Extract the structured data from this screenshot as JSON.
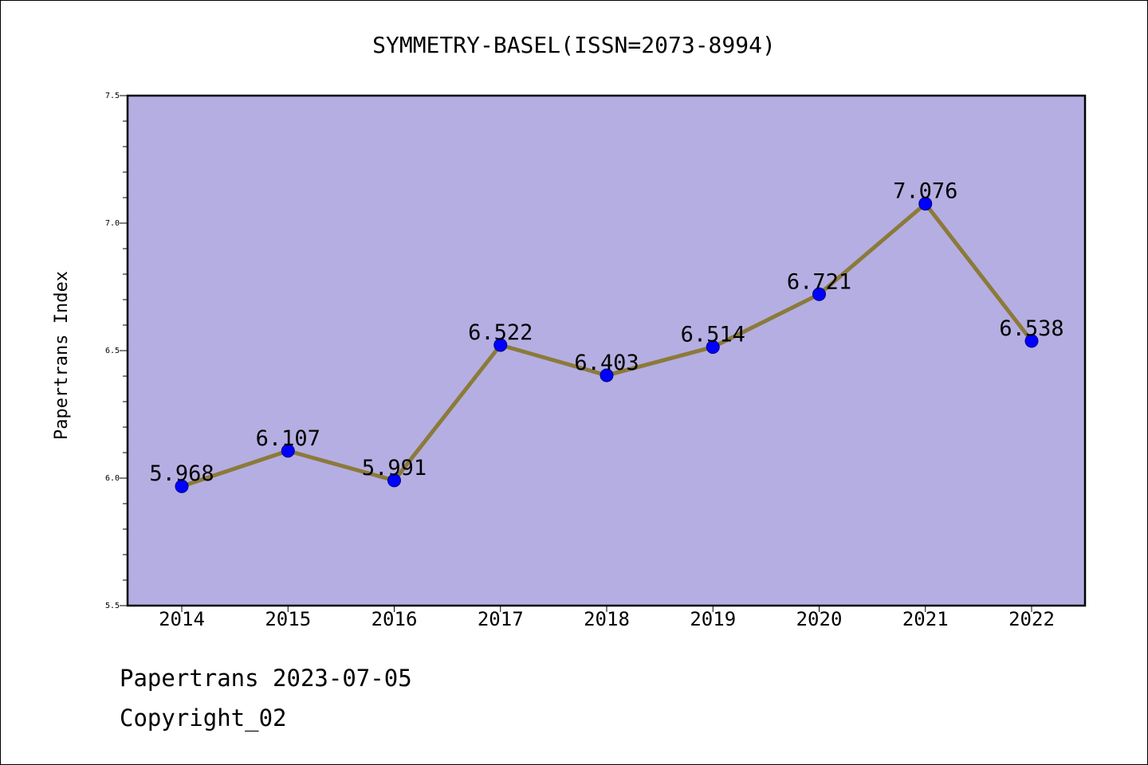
{
  "chart_data": {
    "type": "line",
    "title": "SYMMETRY-BASEL(ISSN=2073-8994)",
    "xlabel": "",
    "ylabel": "Papertrans Index",
    "categories": [
      "2014",
      "2015",
      "2016",
      "2017",
      "2018",
      "2019",
      "2020",
      "2021",
      "2022"
    ],
    "series": [
      {
        "values": [
          5.968,
          6.107,
          5.991,
          6.522,
          6.403,
          6.514,
          6.721,
          7.076,
          6.538
        ],
        "labels": [
          "5.968",
          "6.107",
          "5.991",
          "6.522",
          "6.403",
          "6.514",
          "6.721",
          "7.076",
          "6.538"
        ]
      }
    ],
    "ylim": [
      5.5,
      7.5
    ],
    "yticks": [
      "5.5",
      "6.0",
      "6.5",
      "7.0",
      "7.5"
    ],
    "grid": false,
    "colors": {
      "plot_background": "#b5aee2",
      "line": "#8b7a3a",
      "marker": "#0000ff"
    }
  },
  "footer": {
    "line1": "Papertrans 2023-07-05",
    "line2": "Copyright_02"
  }
}
